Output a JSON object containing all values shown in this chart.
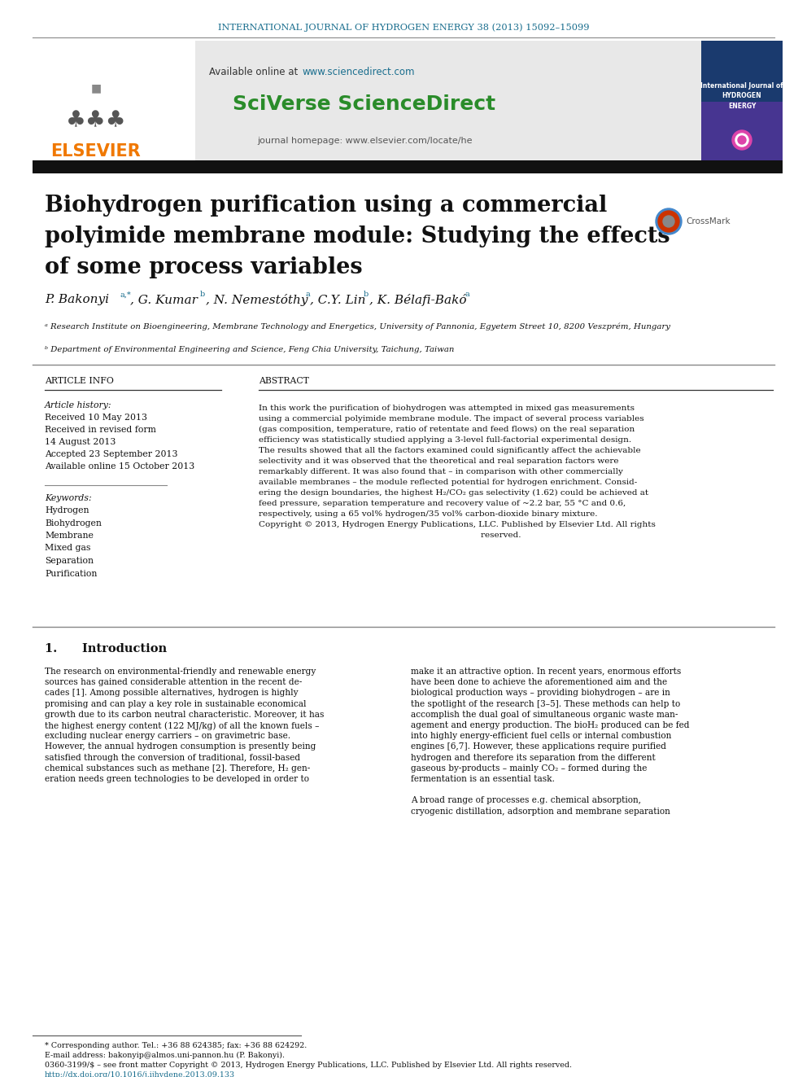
{
  "journal_header": "INTERNATIONAL JOURNAL OF HYDROGEN ENERGY 38 (2013) 15092–15099",
  "available_online": "Available online at ",
  "sciencedirect_url": "www.sciencedirect.com",
  "sciverse_text": "SciVerse ScienceDirect",
  "journal_homepage": "journal homepage: www.elsevier.com/locate/he",
  "title_line1": "Biohydrogen purification using a commercial",
  "title_line2": "polyimide membrane module: Studying the effects",
  "title_line3": "of some process variables",
  "affil_a": "ᵃ Research Institute on Bioengineering, Membrane Technology and Energetics, University of Pannonia, Egyetem Street 10, 8200 Veszprém, Hungary",
  "affil_b": "ᵇ Department of Environmental Engineering and Science, Feng Chia University, Taichung, Taiwan",
  "article_info_title": "ARTICLE INFO",
  "abstract_title": "ABSTRACT",
  "article_history_label": "Article history:",
  "received1": "Received 10 May 2013",
  "received2": "Received in revised form",
  "received2b": "14 August 2013",
  "accepted": "Accepted 23 September 2013",
  "available": "Available online 15 October 2013",
  "keywords_label": "Keywords:",
  "keywords": [
    "Hydrogen",
    "Biohydrogen",
    "Membrane",
    "Mixed gas",
    "Separation",
    "Purification"
  ],
  "abstract_lines": [
    "In this work the purification of biohydrogen was attempted in mixed gas measurements",
    "using a commercial polyimide membrane module. The impact of several process variables",
    "(gas composition, temperature, ratio of retentate and feed flows) on the real separation",
    "efficiency was statistically studied applying a 3-level full-factorial experimental design.",
    "The results showed that all the factors examined could significantly affect the achievable",
    "selectivity and it was observed that the theoretical and real separation factors were",
    "remarkably different. It was also found that – in comparison with other commercially",
    "available membranes – the module reflected potential for hydrogen enrichment. Consid-",
    "ering the design boundaries, the highest H₂/CO₂ gas selectivity (1.62) could be achieved at",
    "feed pressure, separation temperature and recovery value of ~2.2 bar, 55 °C and 0.6,",
    "respectively, using a 65 vol% hydrogen/35 vol% carbon-dioxide binary mixture.",
    "Copyright © 2013, Hydrogen Energy Publications, LLC. Published by Elsevier Ltd. All rights",
    "                                                                                    reserved."
  ],
  "section1_title": "1.      Introduction",
  "intro_left_lines": [
    "The research on environmental-friendly and renewable energy",
    "sources has gained considerable attention in the recent de-",
    "cades [1]. Among possible alternatives, hydrogen is highly",
    "promising and can play a key role in sustainable economical",
    "growth due to its carbon neutral characteristic. Moreover, it has",
    "the highest energy content (122 MJ/kg) of all the known fuels –",
    "excluding nuclear energy carriers – on gravimetric base.",
    "However, the annual hydrogen consumption is presently being",
    "satisfied through the conversion of traditional, fossil-based",
    "chemical substances such as methane [2]. Therefore, H₂ gen-",
    "eration needs green technologies to be developed in order to"
  ],
  "intro_right_lines": [
    "make it an attractive option. In recent years, enormous efforts",
    "have been done to achieve the aforementioned aim and the",
    "biological production ways – providing biohydrogen – are in",
    "the spotlight of the research [3–5]. These methods can help to",
    "accomplish the dual goal of simultaneous organic waste man-",
    "agement and energy production. The bioH₂ produced can be fed",
    "into highly energy-efficient fuel cells or internal combustion",
    "engines [6,7]. However, these applications require purified",
    "hydrogen and therefore its separation from the different",
    "gaseous by-products – mainly CO₂ – formed during the",
    "fermentation is an essential task.",
    "",
    "A broad range of processes e.g. chemical absorption,",
    "cryogenic distillation, adsorption and membrane separation"
  ],
  "footnote_star": "* Corresponding author. Tel.: +36 88 624385; fax: +36 88 624292.",
  "footnote_email": "E-mail address: bakonyip@almos.uni-pannon.hu (P. Bakonyi).",
  "footnote_issn": "0360-3199/$ – see front matter Copyright © 2013, Hydrogen Energy Publications, LLC. Published by Elsevier Ltd. All rights reserved.",
  "footnote_doi": "http://dx.doi.org/10.1016/j.ijhydene.2013.09.133",
  "bg_color": "#ffffff",
  "header_color": "#1a6e8e",
  "sciverse_color": "#2a8c2a",
  "elsevier_orange": "#f07800",
  "link_color": "#1a6e8e"
}
